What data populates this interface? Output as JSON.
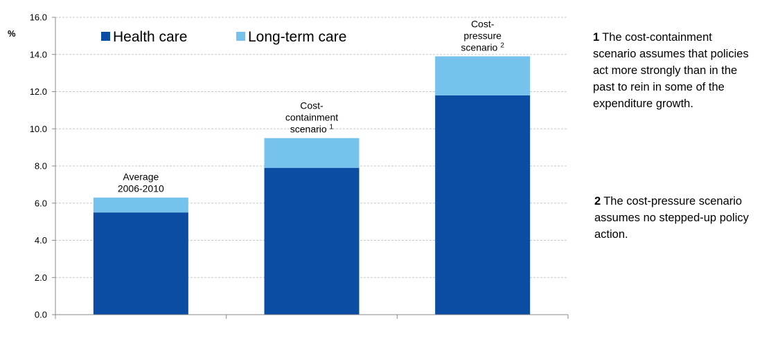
{
  "chart_data": {
    "type": "bar",
    "stacked": true,
    "ylabel": "%",
    "ylim": [
      0,
      16
    ],
    "yticks": [
      "0.0",
      "2.0",
      "4.0",
      "6.0",
      "8.0",
      "10.0",
      "12.0",
      "14.0",
      "16.0"
    ],
    "grid": true,
    "legend_position": "top-left",
    "categories": [
      {
        "lines": [
          "Average",
          "2006-2010"
        ],
        "sup": ""
      },
      {
        "lines": [
          "Cost-",
          "containment",
          "scenario"
        ],
        "sup": "1"
      },
      {
        "lines": [
          "Cost-",
          "pressure",
          "scenario"
        ],
        "sup": "2"
      }
    ],
    "series": [
      {
        "name": "Health care",
        "color": "#0a4da2",
        "values": [
          5.5,
          7.9,
          11.8
        ]
      },
      {
        "name": "Long-term care",
        "color": "#75c2ec",
        "values": [
          0.8,
          1.6,
          2.1
        ]
      }
    ]
  },
  "notes": [
    {
      "number": "1",
      "text": "The cost-containment scenario assumes that policies act more strongly than in the past to rein in some of the expenditure growth."
    },
    {
      "number": "2",
      "text": "The cost-pressure scenario assumes no stepped-up policy action."
    }
  ]
}
